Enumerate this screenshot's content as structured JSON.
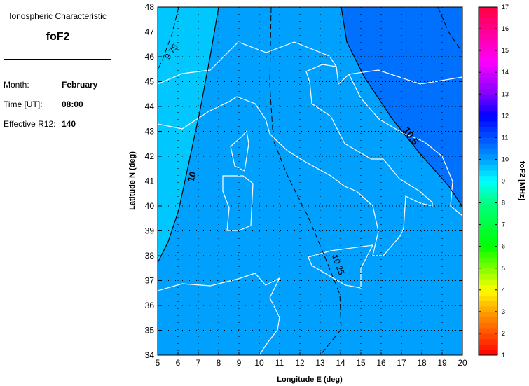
{
  "info": {
    "header": "Ionospheric Characteristic",
    "characteristic": "foF2",
    "month_label": "Month:",
    "month_value": "February",
    "time_label": "Time [UT]:",
    "time_value": "08:00",
    "r12_label": "Effective R12:",
    "r12_value": "140"
  },
  "map": {
    "xlabel": "Longitude E (deg)",
    "ylabel": "Latitude N (deg)",
    "xlim": [
      5,
      20
    ],
    "ylim": [
      34,
      48
    ],
    "xticks": [
      "5",
      "6",
      "7",
      "8",
      "9",
      "10",
      "11",
      "12",
      "13",
      "14",
      "15",
      "16",
      "17",
      "18",
      "19",
      "20"
    ],
    "yticks": [
      "34",
      "35",
      "36",
      "37",
      "38",
      "39",
      "40",
      "41",
      "42",
      "43",
      "44",
      "45",
      "46",
      "47",
      "48"
    ],
    "grid": true,
    "contour_labels": [
      "9.75",
      "10",
      "10.25",
      "10.5"
    ],
    "fill_colors": {
      "below_10": "#00C8FF",
      "10_to_10.5": "#00A0FF",
      "above_10.5": "#0070FF",
      "coastline": "#FFFFFF"
    }
  },
  "colorbar": {
    "label": "foF2 [MHz]",
    "range": [
      1,
      17
    ],
    "ticks": [
      "1",
      "2",
      "3",
      "4",
      "5",
      "6",
      "7",
      "8",
      "9",
      "10",
      "11",
      "12",
      "13",
      "14",
      "15",
      "16",
      "17"
    ]
  }
}
